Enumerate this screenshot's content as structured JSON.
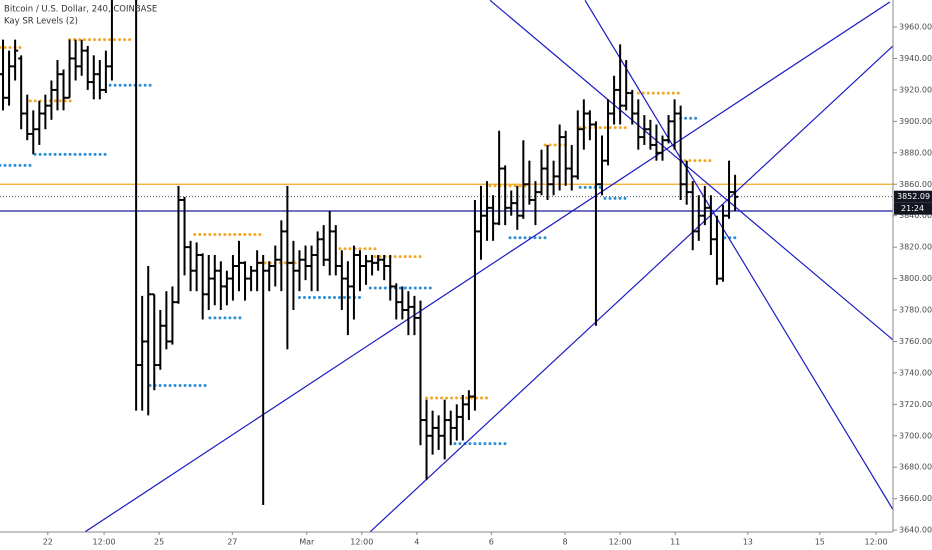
{
  "chart_data": {
    "type": "ohlc",
    "title": "Bitcoin / U.S. Dollar, 240, COINBASE",
    "subtitle": "Kay SR Levels (2)",
    "bar_color": "#000000",
    "x": [
      0,
      1,
      2,
      3,
      4,
      5,
      6,
      7,
      8,
      9,
      10,
      11,
      12,
      13,
      14,
      15,
      16,
      17,
      18,
      22,
      23,
      24,
      25,
      26,
      27,
      28,
      29,
      30,
      31,
      32,
      33,
      34,
      35,
      36,
      37,
      38,
      39,
      40,
      41,
      42,
      43,
      44,
      45,
      46,
      47,
      48,
      49,
      50,
      51,
      52,
      53,
      54,
      55,
      56,
      57,
      58,
      59,
      60,
      61,
      62,
      63,
      64,
      65,
      66,
      67,
      68,
      69,
      70,
      71,
      72,
      73,
      74,
      75,
      76,
      77,
      78,
      79,
      80,
      81,
      82,
      83,
      84,
      85,
      86,
      87,
      88,
      89,
      90,
      91,
      92,
      93,
      94,
      95,
      96,
      97,
      98,
      99,
      100,
      101,
      102,
      103,
      104,
      105,
      106,
      107,
      108,
      109,
      110,
      111,
      112,
      113,
      114,
      115,
      116,
      117,
      118,
      119,
      120,
      121
    ],
    "open": [
      3930,
      3915,
      3935,
      3940,
      3905,
      3892,
      3895,
      3905,
      3910,
      3920,
      3930,
      3915,
      3940,
      3935,
      3945,
      3925,
      3930,
      3920,
      3935,
      3985,
      3745,
      3760,
      3790,
      3745,
      3770,
      3760,
      3785,
      3850,
      3820,
      3805,
      3815,
      3790,
      3800,
      3805,
      3795,
      3800,
      3808,
      3810,
      3800,
      3805,
      3810,
      3805,
      3808,
      3812,
      3830,
      3810,
      3805,
      3812,
      3808,
      3815,
      3825,
      3812,
      3830,
      3808,
      3800,
      3795,
      3815,
      3808,
      3811,
      3810,
      3812,
      3808,
      3795,
      3785,
      3780,
      3782,
      3775,
      3710,
      3700,
      3705,
      3700,
      3710,
      3705,
      3712,
      3720,
      3725,
      3830,
      3840,
      3845,
      3835,
      3870,
      3845,
      3848,
      3840,
      3860,
      3850,
      3855,
      3870,
      3860,
      3865,
      3890,
      3870,
      3865,
      3895,
      3905,
      3898,
      3860,
      3875,
      3905,
      3920,
      3910,
      3918,
      3905,
      3890,
      3895,
      3885,
      3880,
      3888,
      3900,
      3905,
      3860,
      3855,
      3830,
      3840,
      3845,
      3825,
      3800,
      3840,
      3855
    ],
    "high": [
      3952,
      3945,
      3952,
      3942,
      3917,
      3907,
      3913,
      3917,
      3926,
      3939,
      3933,
      3952,
      3952,
      3952,
      3948,
      3942,
      3939,
      3945,
      3995,
      3995,
      3789,
      3808,
      3790,
      3780,
      3792,
      3795,
      3859,
      3852,
      3824,
      3823,
      3816,
      3815,
      3815,
      3811,
      3805,
      3815,
      3824,
      3811,
      3808,
      3818,
      3815,
      3811,
      3821,
      3837,
      3859,
      3824,
      3818,
      3821,
      3821,
      3830,
      3834,
      3843,
      3834,
      3818,
      3811,
      3821,
      3818,
      3815,
      3815,
      3815,
      3815,
      3815,
      3797,
      3795,
      3792,
      3789,
      3786,
      3723,
      3716,
      3713,
      3723,
      3716,
      3720,
      3726,
      3729,
      3850,
      3859,
      3862,
      3853,
      3894,
      3872,
      3856,
      3859,
      3888,
      3875,
      3862,
      3882,
      3885,
      3875,
      3898,
      3894,
      3885,
      3907,
      3914,
      3907,
      3900,
      3891,
      3914,
      3929,
      3949,
      3939,
      3920,
      3914,
      3904,
      3901,
      3898,
      3891,
      3904,
      3914,
      3910,
      3875,
      3862,
      3853,
      3859,
      3853,
      3840,
      3847,
      3875,
      3866
    ],
    "low": [
      3907,
      3910,
      3926,
      3895,
      3888,
      3879,
      3885,
      3895,
      3901,
      3907,
      3907,
      3915,
      3926,
      3929,
      3920,
      3914,
      3914,
      3918,
      3926,
      3716,
      3716,
      3713,
      3729,
      3742,
      3755,
      3758,
      3784,
      3802,
      3792,
      3792,
      3774,
      3780,
      3783,
      3780,
      3783,
      3786,
      3792,
      3786,
      3792,
      3792,
      3656,
      3792,
      3795,
      3792,
      3755,
      3780,
      3792,
      3799,
      3792,
      3792,
      3808,
      3802,
      3802,
      3780,
      3764,
      3774,
      3792,
      3796,
      3802,
      3805,
      3799,
      3786,
      3774,
      3774,
      3764,
      3764,
      3694,
      3672,
      3688,
      3691,
      3685,
      3694,
      3697,
      3697,
      3710,
      3716,
      3812,
      3824,
      3824,
      3834,
      3834,
      3840,
      3831,
      3838,
      3847,
      3834,
      3853,
      3850,
      3853,
      3856,
      3859,
      3856,
      3863,
      3882,
      3888,
      3770,
      3853,
      3872,
      3898,
      3898,
      3907,
      3898,
      3882,
      3885,
      3882,
      3875,
      3875,
      3886,
      3882,
      3850,
      3847,
      3818,
      3824,
      3834,
      3815,
      3796,
      3798,
      3838,
      3843
    ],
    "close": [
      3915,
      3935,
      3945,
      3905,
      3892,
      3895,
      3905,
      3910,
      3920,
      3930,
      3915,
      3940,
      3935,
      3945,
      3925,
      3930,
      3920,
      3935,
      3985,
      3745,
      3760,
      3790,
      3745,
      3770,
      3760,
      3785,
      3850,
      3820,
      3805,
      3815,
      3790,
      3800,
      3805,
      3795,
      3800,
      3808,
      3810,
      3800,
      3805,
      3810,
      3805,
      3808,
      3812,
      3830,
      3810,
      3805,
      3812,
      3808,
      3815,
      3825,
      3812,
      3830,
      3808,
      3800,
      3795,
      3815,
      3808,
      3811,
      3810,
      3812,
      3808,
      3795,
      3785,
      3780,
      3782,
      3775,
      3710,
      3700,
      3705,
      3700,
      3710,
      3705,
      3712,
      3720,
      3725,
      3830,
      3840,
      3845,
      3835,
      3870,
      3845,
      3848,
      3840,
      3860,
      3850,
      3855,
      3870,
      3860,
      3865,
      3890,
      3870,
      3865,
      3895,
      3905,
      3898,
      3860,
      3875,
      3905,
      3920,
      3910,
      3918,
      3905,
      3890,
      3895,
      3885,
      3880,
      3888,
      3900,
      3905,
      3860,
      3855,
      3830,
      3840,
      3845,
      3825,
      3800,
      3840,
      3855,
      3852
    ],
    "sr_levels": [
      {
        "color": "#f5a623",
        "segments": [
          {
            "value": 3947,
            "x": [
              -0.5,
              3.6
            ]
          },
          {
            "value": 3913,
            "x": [
              4.5,
              11.9
            ]
          },
          {
            "value": 3952,
            "x": [
              11,
              21
            ]
          },
          {
            "value": 3828,
            "x": [
              31.7,
              42.5
            ]
          },
          {
            "value": 3810,
            "x": [
              42.5,
              49
            ]
          },
          {
            "value": 3819,
            "x": [
              55.7,
              61.5
            ]
          },
          {
            "value": 3814,
            "x": [
              61.5,
              69
            ]
          },
          {
            "value": 3724,
            "x": [
              70,
              80
            ]
          },
          {
            "value": 3859,
            "x": [
              80.5,
              86.3
            ]
          },
          {
            "value": 3885,
            "x": [
              89.6,
              93.7
            ]
          },
          {
            "value": 3896,
            "x": [
              95.4,
              103.6
            ]
          },
          {
            "value": 3918,
            "x": [
              105,
              112
            ]
          },
          {
            "value": 3875,
            "x": [
              112.7,
              117.2
            ]
          }
        ]
      },
      {
        "color": "#2a8fd6",
        "segments": [
          {
            "value": 3872,
            "x": [
              -0.5,
              4.5
            ]
          },
          {
            "value": 3879,
            "x": [
              5.3,
              16.9
            ]
          },
          {
            "value": 3923,
            "x": [
              17.7,
              25.1
            ]
          },
          {
            "value": 3732,
            "x": [
              24.3,
              34.2
            ]
          },
          {
            "value": 3775,
            "x": [
              34.2,
              39.2
            ]
          },
          {
            "value": 3788,
            "x": [
              49,
              59
            ]
          },
          {
            "value": 3794,
            "x": [
              60.7,
              71.4
            ]
          },
          {
            "value": 3695,
            "x": [
              74.7,
              83
            ]
          },
          {
            "value": 3826,
            "x": [
              83.8,
              89.6
            ]
          },
          {
            "value": 3858,
            "x": [
              95.4,
              99.5
            ]
          },
          {
            "value": 3851,
            "x": [
              99.5,
              103.6
            ]
          },
          {
            "value": 3902,
            "x": [
              112,
              115.2
            ]
          },
          {
            "value": 3826,
            "x": [
              119.3,
              121.5
            ]
          }
        ]
      }
    ],
    "trendlines": [
      {
        "color": "#1c1cc4",
        "x": [
          13.6,
          146.6
        ],
        "values": [
          3639,
          3976
        ]
      },
      {
        "color": "#1c1cc4",
        "x": [
          60.7,
          147.1
        ],
        "values": [
          3639,
          3948
        ]
      },
      {
        "color": "#1c1cc4",
        "x": [
          80.5,
          147.1
        ],
        "values": [
          3977,
          3761
        ]
      },
      {
        "color": "#1c1cc4",
        "x": [
          96.2,
          147.1
        ],
        "values": [
          3977,
          3653
        ]
      }
    ],
    "price_lines": [
      {
        "value": 3860,
        "color": "#f5a623"
      },
      {
        "value": 3843,
        "color": "#1c1c9e"
      }
    ],
    "last_price": 3852.09,
    "countdown": "21:24",
    "xlim": [
      -0.5,
      147.1
    ],
    "ylim": [
      3638.8,
      3977.2
    ],
    "xticks": [
      {
        "value": 7.4,
        "label": "22"
      },
      {
        "value": 16.7,
        "label": "12:00"
      },
      {
        "value": 25.8,
        "label": "25"
      },
      {
        "value": 37.9,
        "label": "27"
      },
      {
        "value": 50.2,
        "label": "Mar"
      },
      {
        "value": 59.3,
        "label": "12:00"
      },
      {
        "value": 68.4,
        "label": "4"
      },
      {
        "value": 80.7,
        "label": "6"
      },
      {
        "value": 92.9,
        "label": "8"
      },
      {
        "value": 102.0,
        "label": "12:00"
      },
      {
        "value": 111.1,
        "label": "11"
      },
      {
        "value": 123.1,
        "label": "13"
      },
      {
        "value": 135.0,
        "label": "15"
      },
      {
        "value": 144.3,
        "label": "12:00"
      }
    ],
    "yticks": [
      {
        "value": 3640,
        "label": "3640.00"
      },
      {
        "value": 3660,
        "label": "3660.00"
      },
      {
        "value": 3680,
        "label": "3680.00"
      },
      {
        "value": 3700,
        "label": "3700.00"
      },
      {
        "value": 3720,
        "label": "3720.00"
      },
      {
        "value": 3740,
        "label": "3740.00"
      },
      {
        "value": 3760,
        "label": "3760.00"
      },
      {
        "value": 3780,
        "label": "3780.00"
      },
      {
        "value": 3800,
        "label": "3800.00"
      },
      {
        "value": 3820,
        "label": "3820.00"
      },
      {
        "value": 3840,
        "label": "3840.00"
      },
      {
        "value": 3860,
        "label": "3860.00"
      },
      {
        "value": 3880,
        "label": "3880.00"
      },
      {
        "value": 3900,
        "label": "3900.00"
      },
      {
        "value": 3920,
        "label": "3920.00"
      },
      {
        "value": 3940,
        "label": "3940.00"
      },
      {
        "value": 3960,
        "label": "3960.00"
      }
    ],
    "grid": false
  }
}
